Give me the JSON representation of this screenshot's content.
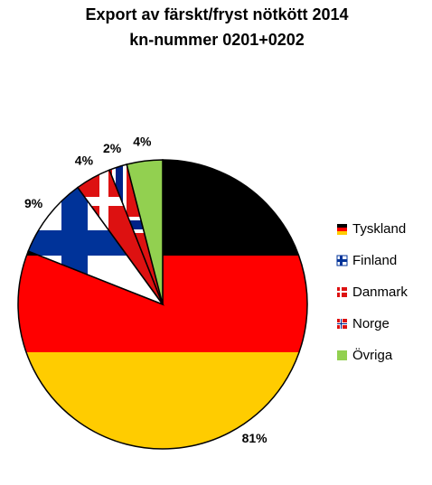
{
  "chart_data": {
    "type": "pie",
    "title": "Export av färskt/fryst nötkött 2014",
    "subtitle": "kn-nummer 0201+0202",
    "categories": [
      "Tyskland",
      "Finland",
      "Danmark",
      "Norge",
      "Övriga"
    ],
    "values": [
      81,
      9,
      4,
      2,
      4
    ],
    "value_labels": [
      "81%",
      "9%",
      "4%",
      "2%",
      "4%"
    ]
  }
}
